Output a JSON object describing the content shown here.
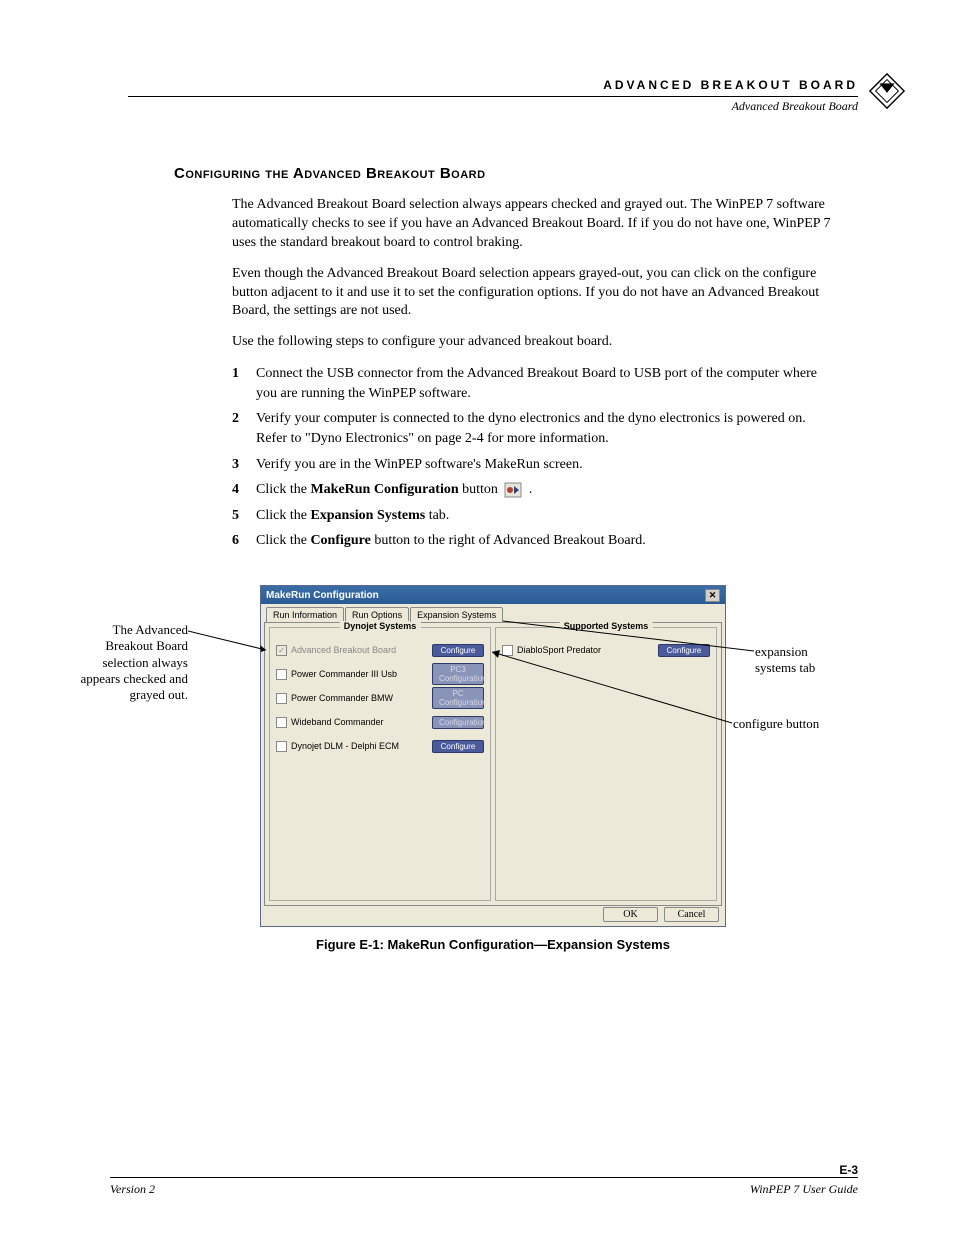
{
  "header": {
    "chapter": "ADVANCED BREAKOUT BOARD",
    "section": "Advanced Breakout Board"
  },
  "heading": "Configuring the Advanced Breakout Board",
  "paras": [
    "The Advanced Breakout Board selection always appears checked and grayed out. The WinPEP 7 software automatically checks to see if you have an Advanced Breakout Board. If if you do not have one, WinPEP 7 uses the standard breakout board to control braking.",
    "Even though the Advanced Breakout Board selection appears grayed-out, you can click on the configure button adjacent to it and use it to set the configuration options. If you do not have an Advanced Breakout Board, the settings are not used.",
    "Use the following steps to configure your advanced breakout board."
  ],
  "steps": [
    {
      "n": "1",
      "t": "Connect the USB connector from the Advanced Breakout Board to USB port of the computer where you are running the WinPEP software."
    },
    {
      "n": "2",
      "t": "Verify your computer is connected to the dyno electronics and the dyno electronics is powered on. Refer to \"Dyno Electronics\" on page 2-4 for more information."
    },
    {
      "n": "3",
      "t": "Verify you are in the WinPEP software's MakeRun screen."
    },
    {
      "n": "4",
      "pre": "Click the ",
      "bold": "MakeRun Configuration",
      "post": " button ",
      "icon": true,
      "post2": " ."
    },
    {
      "n": "5",
      "pre": "Click the ",
      "bold": "Expansion Systems",
      "post": " tab."
    },
    {
      "n": "6",
      "pre": "Click the ",
      "bold": "Configure",
      "post": " button to the right of Advanced Breakout Board."
    }
  ],
  "dialog": {
    "title": "MakeRun Configuration",
    "tabs": [
      "Run Information",
      "Run Options",
      "Expansion Systems"
    ],
    "active_tab": 2,
    "left_group": "Dynojet Systems",
    "right_group": "Supported Systems",
    "dj_items": [
      {
        "label": "Advanced Breakout Board",
        "checked": true,
        "disabled": true,
        "btn": "Configure",
        "btn_dim": false
      },
      {
        "label": "Power Commander III Usb",
        "checked": false,
        "disabled": false,
        "btn": "PC3 Configuration",
        "btn_dim": true
      },
      {
        "label": "Power Commander BMW",
        "checked": false,
        "disabled": false,
        "btn": "PC Configuration",
        "btn_dim": true
      },
      {
        "label": "Wideband Commander",
        "checked": false,
        "disabled": false,
        "btn": "Configuration",
        "btn_dim": true
      },
      {
        "label": "Dynojet DLM - Delphi ECM",
        "checked": false,
        "disabled": false,
        "btn": "Configure",
        "btn_dim": false
      }
    ],
    "sup_items": [
      {
        "label": "DiabloSport Predator",
        "checked": false,
        "btn": "Configure",
        "btn_dim": false
      }
    ],
    "ok": "OK",
    "cancel": "Cancel"
  },
  "caption": "Figure E-1: MakeRun Configuration—Expansion Systems",
  "callouts": {
    "left": "The Advanced Breakout Board selection always appears checked and grayed out.",
    "r1": "expansion systems tab",
    "r2": "configure button"
  },
  "footer": {
    "left": "Version 2",
    "right": "WinPEP 7 User Guide",
    "page": "E-3"
  }
}
